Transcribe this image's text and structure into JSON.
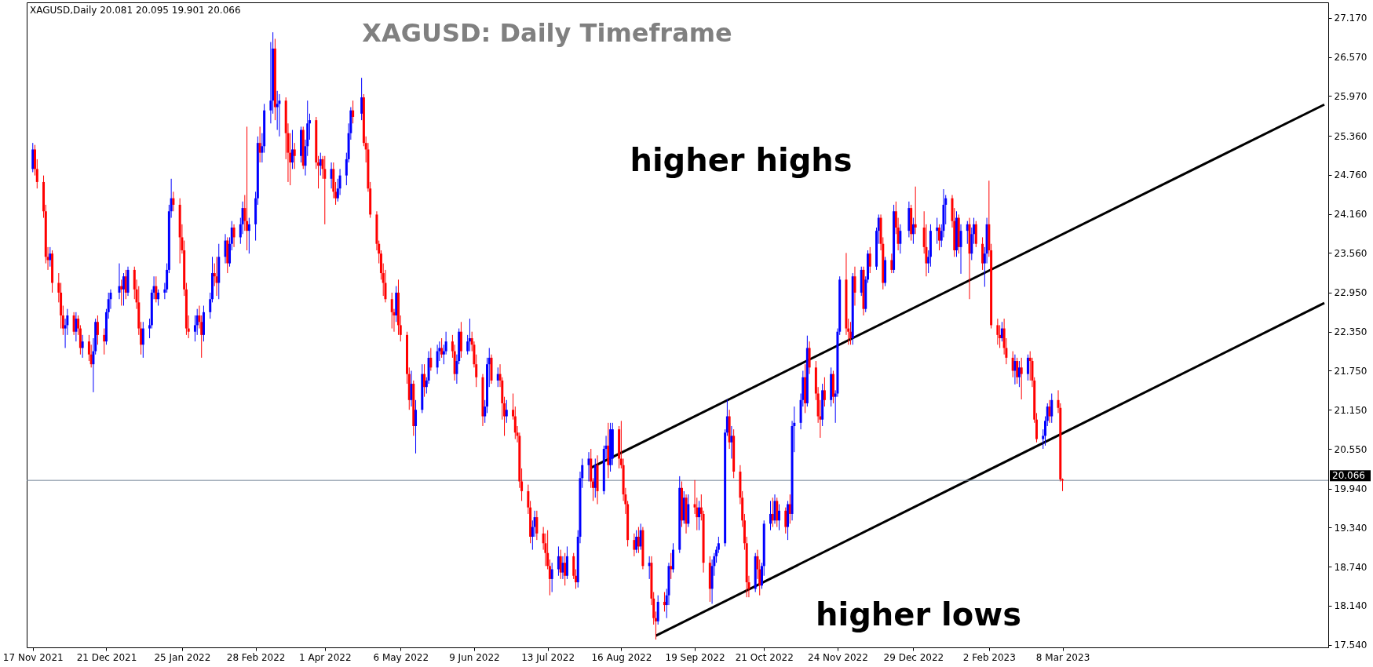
{
  "chart_data": {
    "type": "candlestick",
    "title": "XAGUSD: Daily Timeframe",
    "annotations": [
      "XAGUSD,Daily 20.081 20.095 19.901 20.066",
      "higher highs",
      "higher lows"
    ],
    "xlim": [
      "2021-11-16",
      "2023-07-07"
    ],
    "xticks": [
      {
        "value": "2021-11-17",
        "label": "17 Nov 2021"
      },
      {
        "value": "2021-12-21",
        "label": "21 Dec 2021"
      },
      {
        "value": "2022-01-25",
        "label": "25 Jan 2022"
      },
      {
        "value": "2022-02-28",
        "label": "28 Feb 2022"
      },
      {
        "value": "2022-04-01",
        "label": "1 Apr 2022"
      },
      {
        "value": "2022-05-06",
        "label": "6 May 2022"
      },
      {
        "value": "2022-06-09",
        "label": "9 Jun 2022"
      },
      {
        "value": "2022-07-13",
        "label": "13 Jul 2022"
      },
      {
        "value": "2022-08-16",
        "label": "16 Aug 2022"
      },
      {
        "value": "2022-09-19",
        "label": "19 Sep 2022"
      },
      {
        "value": "2022-10-21",
        "label": "21 Oct 2022"
      },
      {
        "value": "2022-11-24",
        "label": "24 Nov 2022"
      },
      {
        "value": "2022-12-29",
        "label": "29 Dec 2022"
      },
      {
        "value": "2023-02-02",
        "label": "2 Feb 2023"
      },
      {
        "value": "2023-03-08",
        "label": "8 Mar 2023"
      }
    ],
    "ylim": [
      17.5,
      27.41
    ],
    "yticks": [
      {
        "value": 17.54,
        "label": "17.540"
      },
      {
        "value": 18.14,
        "label": "18.140"
      },
      {
        "value": 18.74,
        "label": "18.740"
      },
      {
        "value": 19.34,
        "label": "19.340"
      },
      {
        "value": 19.94,
        "label": "19.940"
      },
      {
        "value": 20.55,
        "label": "20.550"
      },
      {
        "value": 21.15,
        "label": "21.150"
      },
      {
        "value": 21.75,
        "label": "21.750"
      },
      {
        "value": 22.35,
        "label": "22.350"
      },
      {
        "value": 22.95,
        "label": "22.950"
      },
      {
        "value": 23.56,
        "label": "23.560"
      },
      {
        "value": 24.16,
        "label": "24.160"
      },
      {
        "value": 24.76,
        "label": "24.760"
      },
      {
        "value": 25.36,
        "label": "25.360"
      },
      {
        "value": 25.97,
        "label": "25.970"
      },
      {
        "value": 26.57,
        "label": "26.570"
      },
      {
        "value": 27.17,
        "label": "27.170"
      }
    ],
    "ref_lines": [
      {
        "axis": "y",
        "value": 20.066,
        "label": "20.066",
        "color": "#778899"
      }
    ],
    "series": [
      {
        "type": "line",
        "color": "#000000",
        "x": [
          "2022-08-02",
          "2023-07-07"
        ],
        "values": [
          20.26,
          25.84
        ]
      },
      {
        "type": "line",
        "color": "#000000",
        "x": [
          "2022-09-01",
          "2023-07-07"
        ],
        "values": [
          17.68,
          22.79
        ]
      }
    ],
    "x": [
      "2021-11-17",
      "2021-11-18",
      "2021-11-19",
      "2021-11-22",
      "2021-11-23",
      "2021-11-24",
      "2021-11-25",
      "2021-11-26",
      "2021-11-29",
      "2021-11-30",
      "2021-12-01",
      "2021-12-02",
      "2021-12-03",
      "2021-12-06",
      "2021-12-07",
      "2021-12-08",
      "2021-12-09",
      "2021-12-10",
      "2021-12-13",
      "2021-12-14",
      "2021-12-15",
      "2021-12-16",
      "2021-12-17",
      "2021-12-20",
      "2021-12-21",
      "2021-12-22",
      "2021-12-23",
      "2021-12-27",
      "2021-12-28",
      "2021-12-29",
      "2021-12-30",
      "2021-12-31",
      "2022-01-03",
      "2022-01-04",
      "2022-01-05",
      "2022-01-06",
      "2022-01-07",
      "2022-01-10",
      "2022-01-11",
      "2022-01-12",
      "2022-01-13",
      "2022-01-14",
      "2022-01-17",
      "2022-01-18",
      "2022-01-19",
      "2022-01-20",
      "2022-01-21",
      "2022-01-24",
      "2022-01-25",
      "2022-01-26",
      "2022-01-27",
      "2022-01-28",
      "2022-01-31",
      "2022-02-01",
      "2022-02-02",
      "2022-02-03",
      "2022-02-04",
      "2022-02-07",
      "2022-02-08",
      "2022-02-09",
      "2022-02-10",
      "2022-02-11",
      "2022-02-14",
      "2022-02-15",
      "2022-02-16",
      "2022-02-17",
      "2022-02-18",
      "2022-02-21",
      "2022-02-22",
      "2022-02-23",
      "2022-02-24",
      "2022-02-25",
      "2022-02-28",
      "2022-03-01",
      "2022-03-02",
      "2022-03-03",
      "2022-03-04",
      "2022-03-07",
      "2022-03-08",
      "2022-03-09",
      "2022-03-10",
      "2022-03-11",
      "2022-03-14",
      "2022-03-15",
      "2022-03-16",
      "2022-03-17",
      "2022-03-18",
      "2022-03-21",
      "2022-03-22",
      "2022-03-23",
      "2022-03-24",
      "2022-03-25",
      "2022-03-28",
      "2022-03-29",
      "2022-03-30",
      "2022-03-31",
      "2022-04-01",
      "2022-04-04",
      "2022-04-05",
      "2022-04-06",
      "2022-04-07",
      "2022-04-08",
      "2022-04-11",
      "2022-04-12",
      "2022-04-13",
      "2022-04-14",
      "2022-04-18",
      "2022-04-19",
      "2022-04-20",
      "2022-04-21",
      "2022-04-22",
      "2022-04-25",
      "2022-04-26",
      "2022-04-27",
      "2022-04-28",
      "2022-04-29",
      "2022-05-02",
      "2022-05-03",
      "2022-05-04",
      "2022-05-05",
      "2022-05-06",
      "2022-05-09",
      "2022-05-10",
      "2022-05-11",
      "2022-05-12",
      "2022-05-13",
      "2022-05-16",
      "2022-05-17",
      "2022-05-18",
      "2022-05-19",
      "2022-05-20",
      "2022-05-23",
      "2022-05-24",
      "2022-05-25",
      "2022-05-26",
      "2022-05-27",
      "2022-05-30",
      "2022-05-31",
      "2022-06-01",
      "2022-06-02",
      "2022-06-03",
      "2022-06-06",
      "2022-06-07",
      "2022-06-08",
      "2022-06-09",
      "2022-06-10",
      "2022-06-13",
      "2022-06-14",
      "2022-06-15",
      "2022-06-16",
      "2022-06-17",
      "2022-06-20",
      "2022-06-21",
      "2022-06-22",
      "2022-06-23",
      "2022-06-24",
      "2022-06-27",
      "2022-06-28",
      "2022-06-29",
      "2022-06-30",
      "2022-07-01",
      "2022-07-04",
      "2022-07-05",
      "2022-07-06",
      "2022-07-07",
      "2022-07-08",
      "2022-07-11",
      "2022-07-12",
      "2022-07-13",
      "2022-07-14",
      "2022-07-15",
      "2022-07-18",
      "2022-07-19",
      "2022-07-20",
      "2022-07-21",
      "2022-07-22",
      "2022-07-25",
      "2022-07-26",
      "2022-07-27",
      "2022-07-28",
      "2022-07-29",
      "2022-08-01",
      "2022-08-02",
      "2022-08-03",
      "2022-08-04",
      "2022-08-05",
      "2022-08-08",
      "2022-08-09",
      "2022-08-10",
      "2022-08-11",
      "2022-08-12",
      "2022-08-15",
      "2022-08-16",
      "2022-08-17",
      "2022-08-18",
      "2022-08-19",
      "2022-08-22",
      "2022-08-23",
      "2022-08-24",
      "2022-08-25",
      "2022-08-26",
      "2022-08-29",
      "2022-08-30",
      "2022-08-31",
      "2022-09-01",
      "2022-09-02",
      "2022-09-05",
      "2022-09-06",
      "2022-09-07",
      "2022-09-08",
      "2022-09-09",
      "2022-09-12",
      "2022-09-13",
      "2022-09-14",
      "2022-09-15",
      "2022-09-16",
      "2022-09-19",
      "2022-09-20",
      "2022-09-21",
      "2022-09-22",
      "2022-09-23",
      "2022-09-26",
      "2022-09-27",
      "2022-09-28",
      "2022-09-29",
      "2022-09-30",
      "2022-10-03",
      "2022-10-04",
      "2022-10-05",
      "2022-10-06",
      "2022-10-07",
      "2022-10-10",
      "2022-10-11",
      "2022-10-12",
      "2022-10-13",
      "2022-10-14",
      "2022-10-17",
      "2022-10-18",
      "2022-10-19",
      "2022-10-20",
      "2022-10-21",
      "2022-10-24",
      "2022-10-25",
      "2022-10-26",
      "2022-10-27",
      "2022-10-28",
      "2022-10-31",
      "2022-11-01",
      "2022-11-02",
      "2022-11-03",
      "2022-11-04",
      "2022-11-07",
      "2022-11-08",
      "2022-11-09",
      "2022-11-10",
      "2022-11-11",
      "2022-11-14",
      "2022-11-15",
      "2022-11-16",
      "2022-11-17",
      "2022-11-18",
      "2022-11-21",
      "2022-11-22",
      "2022-11-23",
      "2022-11-24",
      "2022-11-25",
      "2022-11-28",
      "2022-11-29",
      "2022-11-30",
      "2022-12-01",
      "2022-12-02",
      "2022-12-05",
      "2022-12-06",
      "2022-12-07",
      "2022-12-08",
      "2022-12-09",
      "2022-12-12",
      "2022-12-13",
      "2022-12-14",
      "2022-12-15",
      "2022-12-16",
      "2022-12-19",
      "2022-12-20",
      "2022-12-21",
      "2022-12-22",
      "2022-12-23",
      "2022-12-27",
      "2022-12-28",
      "2022-12-29",
      "2022-12-30",
      "2023-01-03",
      "2023-01-04",
      "2023-01-05",
      "2023-01-06",
      "2023-01-09",
      "2023-01-10",
      "2023-01-11",
      "2023-01-12",
      "2023-01-13",
      "2023-01-16",
      "2023-01-17",
      "2023-01-18",
      "2023-01-19",
      "2023-01-20",
      "2023-01-23",
      "2023-01-24",
      "2023-01-25",
      "2023-01-26",
      "2023-01-27",
      "2023-01-30",
      "2023-01-31",
      "2023-02-01",
      "2023-02-02",
      "2023-02-03",
      "2023-02-06",
      "2023-02-07",
      "2023-02-08",
      "2023-02-09",
      "2023-02-10",
      "2023-02-13",
      "2023-02-14",
      "2023-02-15",
      "2023-02-16",
      "2023-02-17",
      "2023-02-20",
      "2023-02-21",
      "2023-02-22",
      "2023-02-23",
      "2023-02-24",
      "2023-02-27",
      "2023-02-28",
      "2023-03-01",
      "2023-03-02",
      "2023-03-03",
      "2023-03-06",
      "2023-03-07",
      "2023-03-08"
    ],
    "ohlc": [
      [
        24.85,
        25.25,
        24.8,
        25.15
      ],
      [
        25.15,
        25.22,
        24.75,
        24.85
      ],
      [
        24.85,
        25.0,
        24.55,
        24.65
      ],
      [
        24.65,
        24.75,
        24.1,
        24.2
      ],
      [
        24.2,
        24.3,
        23.4,
        23.5
      ],
      [
        23.5,
        23.65,
        23.3,
        23.45
      ],
      [
        23.45,
        23.65,
        23.35,
        23.55
      ],
      [
        23.55,
        23.6,
        22.95,
        23.1
      ],
      [
        23.1,
        23.25,
        22.8,
        22.95
      ],
      [
        22.95,
        23.1,
        22.4,
        22.6
      ],
      [
        22.6,
        22.75,
        22.3,
        22.4
      ],
      [
        22.4,
        22.55,
        22.1,
        22.45
      ],
      [
        22.45,
        22.7,
        22.3,
        22.6
      ],
      [
        22.6,
        22.65,
        22.3,
        22.35
      ],
      [
        22.35,
        22.65,
        22.2,
        22.55
      ],
      [
        22.55,
        22.6,
        22.3,
        22.4
      ],
      [
        22.4,
        22.45,
        22.0,
        22.1
      ],
      [
        22.1,
        22.3,
        21.95,
        22.2
      ],
      [
        22.2,
        22.3,
        21.9,
        22.0
      ],
      [
        22.0,
        22.15,
        21.8,
        21.85
      ],
      [
        21.85,
        22.25,
        21.42,
        22.05
      ],
      [
        22.05,
        22.55,
        22.0,
        22.5
      ],
      [
        22.5,
        22.6,
        22.15,
        22.3
      ],
      [
        22.3,
        22.4,
        22.0,
        22.2
      ],
      [
        22.2,
        22.7,
        22.15,
        22.65
      ],
      [
        22.65,
        22.95,
        22.55,
        22.85
      ],
      [
        22.85,
        23.0,
        22.7,
        22.95
      ],
      [
        22.95,
        23.4,
        22.85,
        23.05
      ],
      [
        23.05,
        23.15,
        22.75,
        23.0
      ],
      [
        23.0,
        23.25,
        22.75,
        23.2
      ],
      [
        23.2,
        23.3,
        22.85,
        22.95
      ],
      [
        22.95,
        23.35,
        22.9,
        23.3
      ],
      [
        23.3,
        23.35,
        22.85,
        23.0
      ],
      [
        23.0,
        23.15,
        22.7,
        22.8
      ],
      [
        22.8,
        23.05,
        22.3,
        22.4
      ],
      [
        22.4,
        22.5,
        22.0,
        22.15
      ],
      [
        22.15,
        22.5,
        21.95,
        22.4
      ],
      [
        22.4,
        22.55,
        22.25,
        22.45
      ],
      [
        22.45,
        23.0,
        22.4,
        22.95
      ],
      [
        22.95,
        23.2,
        22.85,
        23.05
      ],
      [
        23.05,
        23.2,
        22.8,
        22.85
      ],
      [
        22.85,
        23.0,
        22.75,
        22.95
      ],
      [
        22.95,
        23.1,
        22.85,
        23.0
      ],
      [
        23.0,
        23.4,
        22.95,
        23.3
      ],
      [
        23.3,
        24.3,
        23.25,
        24.2
      ],
      [
        24.2,
        24.7,
        24.1,
        24.4
      ],
      [
        24.4,
        24.5,
        24.2,
        24.3
      ],
      [
        24.3,
        24.4,
        23.4,
        23.8
      ],
      [
        23.8,
        24.0,
        23.55,
        23.6
      ],
      [
        23.6,
        23.75,
        22.9,
        23.0
      ],
      [
        23.0,
        23.1,
        22.3,
        22.4
      ],
      [
        22.4,
        22.6,
        22.25,
        22.35
      ],
      [
        22.35,
        22.6,
        22.2,
        22.45
      ],
      [
        22.45,
        22.7,
        22.3,
        22.6
      ],
      [
        22.6,
        22.75,
        22.4,
        22.5
      ],
      [
        22.5,
        22.6,
        21.95,
        22.3
      ],
      [
        22.3,
        22.75,
        22.2,
        22.65
      ],
      [
        22.65,
        22.95,
        22.55,
        22.85
      ],
      [
        22.85,
        23.5,
        22.8,
        23.25
      ],
      [
        23.25,
        23.4,
        23.05,
        23.2
      ],
      [
        23.2,
        23.5,
        22.9,
        23.1
      ],
      [
        23.1,
        23.7,
        22.85,
        23.5
      ],
      [
        23.5,
        23.85,
        23.4,
        23.75
      ],
      [
        23.75,
        23.8,
        23.25,
        23.4
      ],
      [
        23.4,
        23.8,
        23.35,
        23.7
      ],
      [
        23.7,
        24.05,
        23.6,
        23.95
      ],
      [
        23.95,
        24.0,
        23.65,
        23.8
      ],
      [
        23.8,
        24.1,
        23.7,
        24.0
      ],
      [
        24.0,
        24.35,
        23.85,
        24.25
      ],
      [
        24.25,
        24.45,
        23.9,
        24.05
      ],
      [
        24.05,
        25.5,
        23.6,
        23.9
      ],
      [
        23.9,
        24.1,
        23.55,
        24.0
      ],
      [
        24.0,
        24.5,
        23.75,
        24.4
      ],
      [
        24.4,
        25.35,
        24.3,
        25.25
      ],
      [
        25.25,
        25.5,
        24.95,
        25.1
      ],
      [
        25.1,
        25.4,
        24.95,
        25.2
      ],
      [
        25.2,
        25.85,
        25.1,
        25.75
      ],
      [
        25.75,
        26.8,
        25.55,
        25.9
      ],
      [
        25.9,
        26.95,
        25.7,
        26.7
      ],
      [
        26.7,
        26.85,
        25.6,
        25.8
      ],
      [
        25.8,
        26.05,
        25.45,
        25.85
      ],
      [
        25.85,
        26.0,
        25.35,
        25.9
      ],
      [
        25.9,
        25.95,
        25.0,
        25.4
      ],
      [
        25.4,
        25.55,
        24.65,
        25.1
      ],
      [
        25.1,
        25.4,
        24.6,
        24.95
      ],
      [
        24.95,
        25.45,
        24.85,
        25.15
      ],
      [
        25.15,
        25.25,
        24.85,
        25.05
      ],
      [
        25.05,
        25.5,
        24.95,
        25.45
      ],
      [
        25.45,
        25.5,
        24.85,
        24.9
      ],
      [
        24.9,
        25.3,
        24.75,
        25.2
      ],
      [
        25.2,
        25.9,
        25.05,
        25.55
      ],
      [
        25.55,
        25.7,
        25.3,
        25.6
      ],
      [
        25.6,
        25.65,
        24.85,
        24.95
      ],
      [
        24.95,
        25.05,
        24.55,
        24.9
      ],
      [
        24.9,
        25.1,
        24.75,
        25.0
      ],
      [
        25.0,
        25.05,
        24.7,
        24.85
      ],
      [
        24.85,
        25.05,
        24.0,
        24.7
      ],
      [
        24.7,
        24.95,
        24.55,
        24.85
      ],
      [
        24.85,
        24.95,
        24.4,
        24.5
      ],
      [
        24.5,
        24.65,
        24.3,
        24.4
      ],
      [
        24.4,
        24.7,
        24.35,
        24.55
      ],
      [
        24.55,
        24.85,
        24.45,
        24.75
      ],
      [
        24.75,
        25.1,
        24.6,
        25.0
      ],
      [
        25.0,
        25.55,
        24.95,
        25.4
      ],
      [
        25.4,
        25.8,
        25.3,
        25.75
      ],
      [
        25.75,
        25.9,
        25.55,
        25.65
      ],
      [
        25.7,
        26.25,
        25.6,
        25.95
      ],
      [
        25.95,
        26.0,
        25.2,
        25.25
      ],
      [
        25.25,
        25.35,
        24.95,
        25.15
      ],
      [
        25.15,
        25.25,
        24.5,
        24.55
      ],
      [
        24.55,
        24.65,
        24.1,
        24.15
      ],
      [
        24.15,
        24.2,
        23.6,
        23.7
      ],
      [
        23.7,
        23.75,
        23.4,
        23.55
      ],
      [
        23.55,
        23.6,
        23.15,
        23.25
      ],
      [
        23.25,
        23.4,
        22.9,
        23.1
      ],
      [
        23.1,
        23.3,
        22.8,
        22.85
      ],
      [
        22.85,
        22.95,
        22.4,
        22.65
      ],
      [
        22.65,
        22.7,
        22.35,
        22.6
      ],
      [
        22.6,
        23.05,
        22.5,
        22.95
      ],
      [
        22.95,
        23.15,
        22.3,
        22.45
      ],
      [
        22.45,
        22.6,
        22.2,
        22.3
      ],
      [
        22.3,
        22.35,
        21.55,
        21.7
      ],
      [
        21.7,
        21.8,
        21.15,
        21.3
      ],
      [
        21.3,
        21.75,
        21.2,
        21.55
      ],
      [
        21.55,
        21.6,
        20.75,
        20.9
      ],
      [
        20.9,
        21.3,
        20.48,
        21.15
      ],
      [
        21.15,
        21.85,
        21.1,
        21.7
      ],
      [
        21.7,
        21.85,
        21.35,
        21.5
      ],
      [
        21.5,
        21.65,
        21.4,
        21.6
      ],
      [
        21.6,
        22.05,
        21.55,
        21.95
      ],
      [
        21.95,
        22.1,
        21.75,
        21.8
      ],
      [
        21.8,
        22.15,
        21.7,
        22.05
      ],
      [
        22.05,
        22.2,
        21.9,
        22.1
      ],
      [
        22.1,
        22.25,
        21.95,
        22.0
      ],
      [
        22.0,
        22.15,
        21.85,
        22.05
      ],
      [
        22.05,
        22.35,
        22.0,
        22.2
      ],
      [
        22.2,
        22.3,
        21.95,
        22.05
      ],
      [
        22.05,
        22.15,
        21.6,
        21.7
      ],
      [
        21.7,
        22.0,
        21.55,
        21.9
      ],
      [
        21.9,
        22.4,
        21.85,
        22.35
      ],
      [
        22.35,
        22.5,
        21.95,
        22.05
      ],
      [
        22.05,
        22.3,
        22.0,
        22.2
      ],
      [
        22.2,
        22.55,
        22.05,
        22.25
      ],
      [
        22.25,
        22.35,
        22.05,
        22.15
      ],
      [
        22.15,
        22.2,
        21.8,
        21.85
      ],
      [
        21.85,
        22.0,
        21.5,
        21.65
      ],
      [
        21.65,
        21.7,
        20.9,
        21.05
      ],
      [
        21.05,
        21.3,
        20.95,
        21.2
      ],
      [
        21.2,
        21.95,
        21.1,
        21.85
      ],
      [
        21.85,
        22.1,
        21.5,
        21.95
      ],
      [
        21.95,
        22.0,
        21.55,
        21.6
      ],
      [
        21.6,
        21.8,
        21.5,
        21.7
      ],
      [
        21.7,
        21.85,
        21.5,
        21.6
      ],
      [
        21.6,
        21.65,
        21.0,
        21.25
      ],
      [
        21.25,
        21.35,
        20.75,
        21.05
      ],
      [
        21.05,
        21.3,
        20.95,
        21.15
      ],
      [
        21.15,
        21.4,
        21.0,
        21.05
      ],
      [
        21.05,
        21.2,
        20.7,
        20.8
      ],
      [
        20.8,
        20.9,
        20.65,
        20.75
      ],
      [
        20.75,
        20.8,
        19.95,
        20.05
      ],
      [
        20.05,
        20.25,
        19.75,
        19.9
      ],
      [
        19.9,
        20.0,
        19.55,
        19.65
      ],
      [
        19.65,
        19.75,
        19.1,
        19.2
      ],
      [
        19.2,
        19.45,
        19.0,
        19.35
      ],
      [
        19.35,
        19.6,
        19.2,
        19.5
      ],
      [
        19.5,
        19.6,
        19.15,
        19.25
      ],
      [
        19.25,
        19.35,
        19.0,
        19.1
      ],
      [
        19.1,
        19.25,
        18.75,
        18.95
      ],
      [
        18.95,
        19.3,
        18.7,
        18.75
      ],
      [
        18.75,
        18.85,
        18.3,
        18.55
      ],
      [
        18.55,
        18.8,
        18.35,
        18.7
      ],
      [
        18.7,
        19.05,
        18.6,
        18.9
      ],
      [
        18.9,
        19.0,
        18.55,
        18.65
      ],
      [
        18.65,
        18.9,
        18.55,
        18.8
      ],
      [
        18.8,
        18.95,
        18.45,
        18.6
      ],
      [
        18.6,
        19.05,
        18.55,
        18.9
      ],
      [
        18.9,
        18.95,
        18.55,
        18.6
      ],
      [
        18.6,
        18.7,
        18.4,
        18.5
      ],
      [
        18.5,
        19.3,
        18.42,
        19.2
      ],
      [
        19.2,
        20.2,
        19.1,
        20.1
      ],
      [
        20.1,
        20.4,
        19.95,
        20.3
      ],
      [
        20.3,
        20.5,
        20.05,
        20.4
      ],
      [
        20.4,
        20.55,
        19.95,
        20.05
      ],
      [
        20.05,
        20.1,
        19.75,
        19.95
      ],
      [
        19.95,
        20.4,
        19.8,
        20.3
      ],
      [
        20.3,
        20.45,
        19.7,
        19.9
      ],
      [
        19.9,
        20.6,
        19.85,
        20.55
      ],
      [
        20.55,
        20.75,
        20.4,
        20.6
      ],
      [
        20.6,
        20.95,
        20.1,
        20.3
      ],
      [
        20.3,
        20.95,
        20.2,
        20.85
      ],
      [
        20.4,
        20.95,
        20.3,
        20.85
      ],
      [
        20.85,
        20.9,
        20.25,
        20.4
      ],
      [
        20.4,
        20.98,
        20.25,
        20.3
      ],
      [
        20.3,
        20.4,
        19.75,
        19.85
      ],
      [
        19.85,
        19.95,
        19.55,
        19.7
      ],
      [
        19.7,
        19.75,
        19.05,
        19.15
      ],
      [
        19.15,
        19.25,
        18.9,
        19.0
      ],
      [
        19.0,
        19.3,
        18.95,
        19.2
      ],
      [
        19.2,
        19.35,
        18.95,
        19.05
      ],
      [
        19.05,
        19.4,
        19.0,
        19.3
      ],
      [
        19.3,
        19.35,
        18.7,
        18.75
      ],
      [
        18.75,
        18.9,
        18.55,
        18.8
      ],
      [
        18.8,
        18.9,
        18.15,
        18.25
      ],
      [
        18.25,
        18.35,
        17.85,
        17.95
      ],
      [
        17.95,
        18.05,
        17.62,
        17.9
      ],
      [
        17.9,
        18.3,
        17.85,
        18.2
      ],
      [
        18.2,
        18.35,
        18.05,
        18.15
      ],
      [
        18.15,
        18.4,
        17.95,
        18.3
      ],
      [
        18.3,
        18.8,
        18.15,
        18.75
      ],
      [
        18.75,
        18.95,
        18.55,
        18.7
      ],
      [
        18.7,
        19.1,
        18.65,
        19.0
      ],
      [
        19.0,
        20.13,
        18.95,
        19.95
      ],
      [
        19.95,
        20.05,
        19.35,
        19.45
      ],
      [
        19.45,
        19.9,
        19.4,
        19.8
      ],
      [
        19.8,
        19.85,
        19.25,
        19.4
      ],
      [
        19.4,
        19.85,
        19.35,
        19.7
      ],
      [
        19.7,
        20.07,
        19.55,
        19.65
      ],
      [
        19.65,
        19.8,
        19.3,
        19.5
      ],
      [
        19.5,
        19.75,
        19.3,
        19.65
      ],
      [
        19.65,
        19.85,
        19.45,
        19.55
      ],
      [
        19.55,
        19.6,
        18.65,
        18.8
      ],
      [
        18.8,
        18.9,
        18.2,
        18.4
      ],
      [
        18.4,
        18.85,
        18.17,
        18.75
      ],
      [
        18.75,
        18.95,
        18.6,
        18.9
      ],
      [
        18.9,
        19.05,
        18.8,
        19.0
      ],
      [
        19.0,
        19.2,
        18.95,
        19.1
      ],
      [
        19.1,
        20.85,
        19.05,
        20.8
      ],
      [
        20.8,
        21.31,
        20.75,
        21.05
      ],
      [
        21.05,
        21.15,
        20.55,
        20.65
      ],
      [
        20.65,
        20.9,
        20.4,
        20.75
      ],
      [
        20.75,
        20.85,
        20.1,
        20.2
      ],
      [
        20.2,
        20.3,
        19.7,
        19.8
      ],
      [
        19.8,
        19.9,
        19.35,
        19.45
      ],
      [
        19.45,
        19.55,
        19.0,
        19.1
      ],
      [
        19.1,
        19.2,
        18.27,
        18.5
      ],
      [
        18.5,
        18.6,
        18.27,
        18.4
      ],
      [
        18.4,
        18.95,
        18.35,
        18.9
      ],
      [
        18.9,
        19.0,
        18.55,
        18.7
      ],
      [
        18.7,
        18.85,
        18.3,
        18.45
      ],
      [
        18.45,
        18.8,
        18.4,
        18.75
      ],
      [
        18.75,
        19.45,
        18.6,
        19.4
      ],
      [
        19.4,
        19.75,
        19.3,
        19.55
      ],
      [
        19.55,
        19.8,
        19.35,
        19.45
      ],
      [
        19.45,
        19.85,
        19.4,
        19.75
      ],
      [
        19.75,
        19.8,
        19.35,
        19.45
      ],
      [
        19.45,
        19.7,
        19.3,
        19.6
      ],
      [
        19.6,
        19.65,
        19.25,
        19.35
      ],
      [
        19.35,
        19.75,
        19.15,
        19.7
      ],
      [
        19.7,
        19.85,
        19.4,
        19.55
      ],
      [
        19.55,
        20.98,
        19.45,
        20.9
      ],
      [
        20.9,
        21.2,
        20.5,
        20.95
      ],
      [
        20.95,
        21.4,
        20.85,
        21.3
      ],
      [
        21.3,
        21.75,
        21.2,
        21.65
      ],
      [
        21.65,
        21.85,
        21.1,
        21.25
      ],
      [
        21.25,
        22.29,
        21.2,
        22.1
      ],
      [
        22.1,
        22.2,
        21.7,
        21.8
      ],
      [
        21.8,
        21.9,
        21.3,
        21.4
      ],
      [
        21.4,
        21.5,
        20.95,
        21.05
      ],
      [
        21.05,
        21.3,
        20.72,
        21.0
      ],
      [
        21.0,
        21.55,
        20.9,
        21.45
      ],
      [
        21.45,
        21.65,
        21.2,
        21.3
      ],
      [
        21.3,
        21.8,
        21.2,
        21.7
      ],
      [
        21.7,
        21.75,
        21.25,
        21.35
      ],
      [
        21.35,
        21.45,
        20.95,
        21.4
      ],
      [
        21.4,
        22.4,
        21.35,
        22.35
      ],
      [
        22.35,
        23.2,
        22.3,
        23.15
      ],
      [
        23.15,
        23.56,
        22.3,
        22.4
      ],
      [
        22.4,
        22.55,
        22.15,
        22.35
      ],
      [
        22.35,
        22.5,
        22.15,
        22.25
      ],
      [
        22.25,
        23.25,
        22.15,
        23.2
      ],
      [
        23.2,
        23.35,
        22.75,
        22.95
      ],
      [
        22.95,
        23.35,
        22.9,
        23.3
      ],
      [
        23.3,
        23.35,
        22.6,
        22.7
      ],
      [
        22.7,
        23.2,
        22.65,
        23.15
      ],
      [
        23.15,
        23.6,
        23.1,
        23.55
      ],
      [
        23.55,
        23.65,
        23.25,
        23.35
      ],
      [
        23.35,
        23.95,
        23.3,
        23.9
      ],
      [
        23.9,
        24.15,
        23.7,
        24.1
      ],
      [
        24.1,
        24.15,
        23.6,
        23.7
      ],
      [
        23.7,
        23.8,
        23.0,
        23.1
      ],
      [
        23.1,
        23.5,
        23.05,
        23.45
      ],
      [
        23.45,
        23.55,
        23.25,
        23.3
      ],
      [
        23.3,
        24.3,
        23.25,
        24.2
      ],
      [
        24.2,
        24.35,
        23.85,
        23.95
      ],
      [
        23.95,
        24.1,
        23.6,
        23.7
      ],
      [
        23.7,
        24.0,
        23.55,
        23.9
      ],
      [
        23.9,
        24.35,
        23.8,
        24.25
      ],
      [
        24.25,
        24.3,
        23.75,
        23.85
      ],
      [
        23.85,
        24.1,
        23.7,
        24.0
      ],
      [
        24.0,
        24.58,
        23.85,
        23.95
      ],
      [
        23.95,
        24.2,
        23.55,
        23.65
      ],
      [
        23.65,
        24.0,
        23.2,
        23.4
      ],
      [
        23.4,
        23.6,
        23.25,
        23.5
      ],
      [
        23.5,
        24.0,
        23.35,
        23.9
      ],
      [
        23.9,
        24.1,
        23.7,
        23.95
      ],
      [
        23.95,
        24.0,
        23.6,
        23.75
      ],
      [
        23.75,
        24.0,
        23.65,
        23.9
      ],
      [
        23.9,
        24.54,
        23.8,
        24.3
      ],
      [
        24.3,
        24.45,
        24.0,
        24.4
      ],
      [
        24.4,
        24.45,
        23.95,
        24.05
      ],
      [
        24.05,
        24.25,
        23.5,
        23.6
      ],
      [
        23.6,
        24.2,
        23.5,
        24.1
      ],
      [
        24.1,
        24.15,
        23.55,
        23.65
      ],
      [
        23.65,
        24.0,
        23.24,
        23.9
      ],
      [
        23.9,
        24.05,
        23.7,
        24.0
      ],
      [
        24.0,
        24.1,
        22.85,
        23.55
      ],
      [
        23.55,
        23.95,
        23.45,
        23.85
      ],
      [
        23.85,
        24.1,
        23.7,
        24.0
      ],
      [
        24.0,
        24.05,
        23.65,
        23.7
      ],
      [
        23.7,
        23.8,
        23.3,
        23.4
      ],
      [
        23.4,
        23.65,
        23.04,
        23.55
      ],
      [
        23.55,
        24.1,
        23.4,
        24.0
      ],
      [
        24.0,
        24.67,
        23.5,
        23.6
      ],
      [
        23.6,
        23.7,
        22.4,
        22.45
      ],
      [
        22.45,
        22.55,
        22.15,
        22.3
      ],
      [
        22.3,
        22.45,
        22.1,
        22.25
      ],
      [
        22.25,
        22.5,
        22.2,
        22.4
      ],
      [
        22.4,
        22.55,
        22.0,
        22.1
      ],
      [
        22.1,
        22.25,
        21.85,
        21.95
      ],
      [
        21.95,
        22.05,
        21.65,
        21.75
      ],
      [
        21.75,
        22.0,
        21.54,
        21.9
      ],
      [
        21.9,
        21.95,
        21.55,
        21.65
      ],
      [
        21.65,
        21.9,
        21.5,
        21.8
      ],
      [
        21.8,
        21.95,
        21.31,
        21.7
      ],
      [
        21.7,
        22.0,
        21.6,
        21.95
      ],
      [
        21.95,
        22.05,
        21.6,
        21.9
      ],
      [
        21.9,
        21.95,
        21.5,
        21.6
      ],
      [
        21.6,
        21.65,
        20.95,
        21.0
      ],
      [
        21.0,
        21.1,
        20.65,
        20.7
      ],
      [
        20.7,
        20.85,
        20.55,
        20.75
      ],
      [
        20.75,
        21.05,
        20.6,
        20.98
      ],
      [
        20.98,
        21.25,
        20.9,
        21.2
      ],
      [
        21.2,
        21.3,
        20.95,
        21.05
      ],
      [
        21.05,
        21.4,
        20.95,
        21.3
      ],
      [
        21.3,
        21.45,
        21.1,
        21.18
      ],
      [
        21.18,
        21.25,
        20.05,
        20.08
      ],
      [
        20.081,
        20.095,
        19.901,
        20.066
      ]
    ]
  }
}
